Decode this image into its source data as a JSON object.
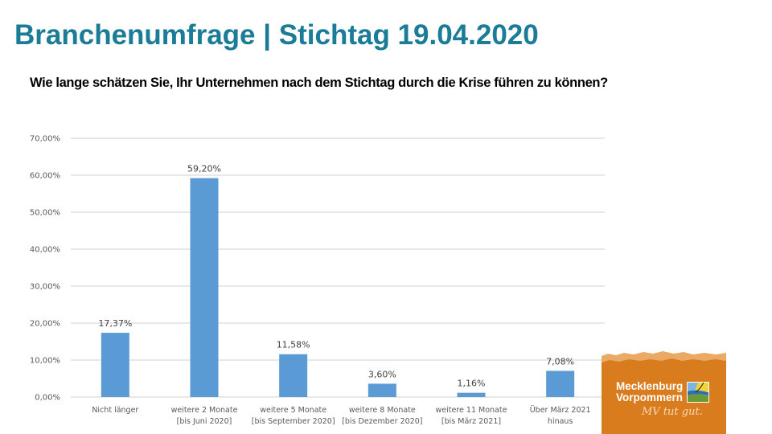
{
  "header": {
    "title": "Branchenumfrage | Stichtag 19.04.2020",
    "question": "Wie lange schätzen Sie, Ihr Unternehmen nach dem Stichtag durch die Krise führen zu können?"
  },
  "chart_data": {
    "type": "bar",
    "title": "",
    "xlabel": "",
    "ylabel": "",
    "ylim": [
      0,
      70
    ],
    "yticks": [
      0,
      10,
      20,
      30,
      40,
      50,
      60,
      70
    ],
    "ytick_labels": [
      "0,00%",
      "10,00%",
      "20,00%",
      "30,00%",
      "40,00%",
      "50,00%",
      "60,00%",
      "70,00%"
    ],
    "grid": true,
    "legend": "none",
    "categories": [
      [
        "Nicht länger"
      ],
      [
        "weitere 2 Monate",
        "[bis Juni 2020]"
      ],
      [
        "weitere 5 Monate",
        "[bis September 2020]"
      ],
      [
        "weitere 8 Monate",
        "[bis Dezember 2020]"
      ],
      [
        "weitere 11 Monate",
        "[bis März 2021]"
      ],
      [
        "Über März 2021",
        "hinaus"
      ]
    ],
    "values": [
      17.37,
      59.2,
      11.58,
      3.6,
      1.16,
      7.08
    ],
    "data_labels": [
      "17,37%",
      "59,20%",
      "11,58%",
      "3,60%",
      "1,16%",
      "7,08%"
    ],
    "colors": {
      "bar": "#5b9bd5",
      "grid": "#d9d9d9"
    }
  },
  "logo": {
    "line1": "Mecklenburg",
    "line2": "Vorpommern",
    "slogan": "MV tut gut.",
    "colors": {
      "background": "#d97c1e",
      "torn_edge": "#eaa964"
    }
  }
}
